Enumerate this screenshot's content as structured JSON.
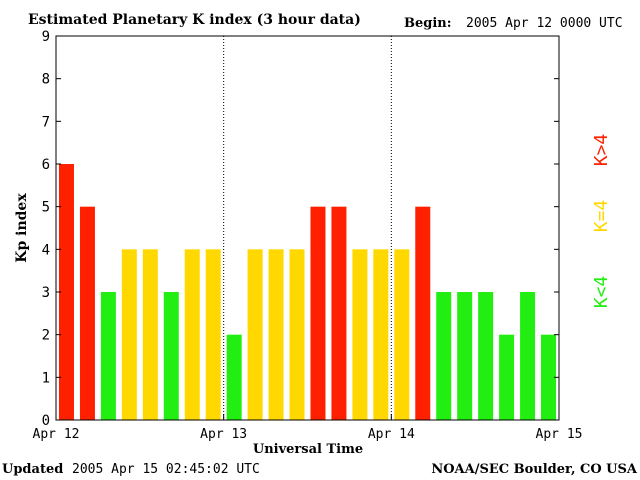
{
  "header": {
    "title": "Estimated Planetary K index (3 hour data)",
    "begin_label": "Begin:",
    "begin_value": "2005 Apr 12 0000 UTC"
  },
  "footer": {
    "updated_label": "Updated",
    "updated_value": "2005 Apr 15 02:45:02 UTC",
    "source": "NOAA/SEC Boulder, CO USA"
  },
  "legend": {
    "high": "K>4",
    "mid": "K=4",
    "low": "K<4"
  },
  "colors": {
    "high": "#ff2000",
    "mid": "#ffd800",
    "low": "#22ee11"
  },
  "chart_data": {
    "type": "bar",
    "ylabel": "Kp index",
    "xlabel": "Universal Time",
    "ylim": [
      0,
      9
    ],
    "yticks": [
      "0",
      "1",
      "2",
      "3",
      "4",
      "5",
      "6",
      "7",
      "8",
      "9"
    ],
    "day_labels": [
      "Apr 12",
      "Apr 13",
      "Apr 14",
      "Apr 15"
    ],
    "values": [
      6,
      5,
      3,
      4,
      4,
      3,
      4,
      4,
      2,
      4,
      4,
      4,
      5,
      5,
      4,
      4,
      4,
      5,
      3,
      3,
      3,
      2,
      3,
      2
    ]
  }
}
